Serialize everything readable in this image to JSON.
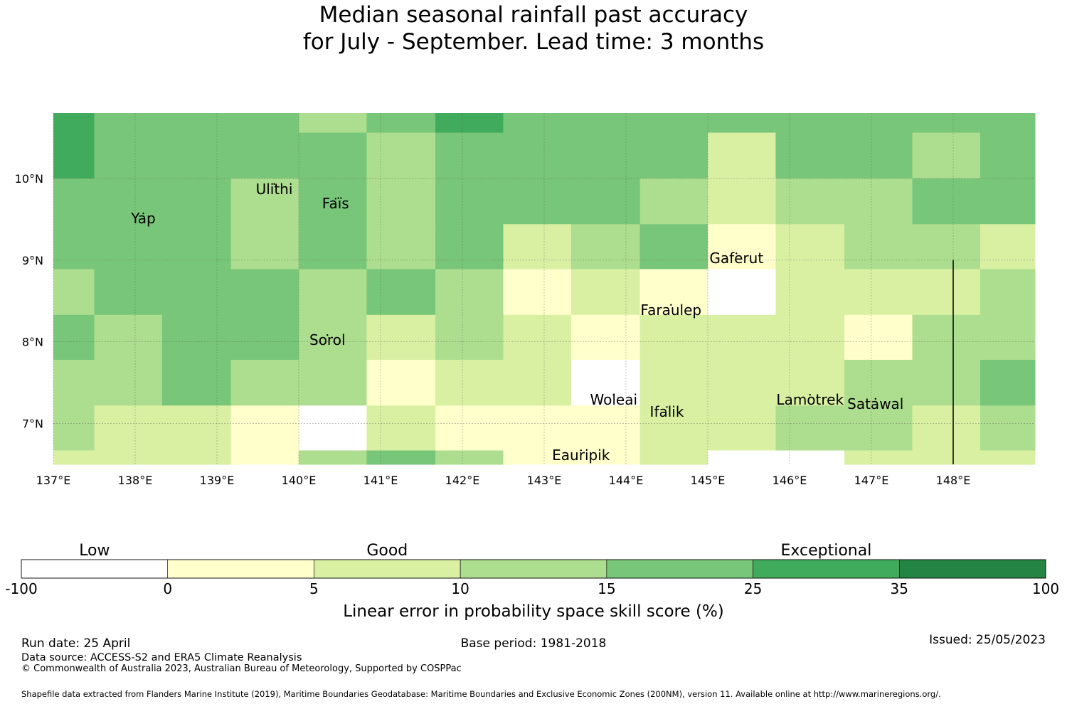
{
  "title": {
    "line1": "Median seasonal rainfall past accuracy",
    "line2": "for July - September. Lead time: 3 months"
  },
  "map": {
    "lon_range": [
      137.0,
      149.0
    ],
    "lat_range": [
      6.5,
      10.8
    ],
    "lon_ticks": [
      {
        "value": 137,
        "label": "137°E"
      },
      {
        "value": 138,
        "label": "138°E"
      },
      {
        "value": 139,
        "label": "139°E"
      },
      {
        "value": 140,
        "label": "140°E"
      },
      {
        "value": 141,
        "label": "141°E"
      },
      {
        "value": 142,
        "label": "142°E"
      },
      {
        "value": 143,
        "label": "143°E"
      },
      {
        "value": 144,
        "label": "144°E"
      },
      {
        "value": 145,
        "label": "145°E"
      },
      {
        "value": 146,
        "label": "146°E"
      },
      {
        "value": 147,
        "label": "147°E"
      },
      {
        "value": 148,
        "label": "148°E"
      }
    ],
    "lat_ticks": [
      {
        "value": 10,
        "label": "10°N"
      },
      {
        "value": 9,
        "label": "9°N"
      },
      {
        "value": 8,
        "label": "8°N"
      },
      {
        "value": 7,
        "label": "7°N"
      }
    ],
    "lon_edges": [
      137.0,
      137.5,
      138.33,
      139.17,
      140.0,
      140.83,
      141.67,
      142.5,
      143.33,
      144.17,
      145.0,
      145.83,
      146.67,
      147.5,
      148.33,
      149.0
    ],
    "lat_edges": [
      10.8,
      10.56,
      10.0,
      9.44,
      8.89,
      8.33,
      7.78,
      7.22,
      6.67,
      6.5
    ],
    "class_grid": [
      [
        5,
        4,
        4,
        4,
        3,
        4,
        5,
        4,
        4,
        4,
        4,
        4,
        4,
        4,
        4
      ],
      [
        5,
        4,
        4,
        4,
        4,
        3,
        4,
        4,
        4,
        4,
        2,
        4,
        4,
        3,
        4
      ],
      [
        4,
        4,
        4,
        3,
        4,
        3,
        4,
        4,
        4,
        3,
        2,
        3,
        3,
        4,
        4
      ],
      [
        4,
        4,
        4,
        3,
        4,
        3,
        4,
        2,
        3,
        4,
        1,
        2,
        3,
        3,
        2
      ],
      [
        3,
        4,
        4,
        4,
        3,
        4,
        3,
        1,
        2,
        1,
        0,
        2,
        2,
        2,
        3
      ],
      [
        4,
        3,
        4,
        4,
        3,
        2,
        3,
        2,
        1,
        2,
        2,
        2,
        1,
        3,
        3
      ],
      [
        3,
        3,
        4,
        3,
        3,
        1,
        2,
        2,
        0,
        2,
        2,
        2,
        3,
        3,
        4
      ],
      [
        3,
        2,
        2,
        1,
        0,
        2,
        1,
        1,
        1,
        2,
        2,
        3,
        3,
        2,
        3
      ],
      [
        2,
        2,
        2,
        1,
        3,
        4,
        3,
        1,
        1,
        2,
        0,
        0,
        2,
        2,
        2
      ]
    ],
    "vertical_line_lon": 148.0,
    "vertical_line_lat_top": 9.0,
    "islands": [
      {
        "name": "Yap",
        "lon": 138.1,
        "lat": 9.52
      },
      {
        "name": "Ulithi",
        "lon": 139.7,
        "lat": 9.88
      },
      {
        "name": "Faïs",
        "lon": 140.45,
        "lat": 9.7
      },
      {
        "name": "Sorol",
        "lon": 140.35,
        "lat": 8.03
      },
      {
        "name": "Gaferut",
        "lon": 145.35,
        "lat": 9.03
      },
      {
        "name": "Faraulep",
        "lon": 144.55,
        "lat": 8.4
      },
      {
        "name": "Woleai",
        "lon": 143.85,
        "lat": 7.3
      },
      {
        "name": "Ifalik",
        "lon": 144.5,
        "lat": 7.15
      },
      {
        "name": "Eauripik",
        "lon": 143.45,
        "lat": 6.62
      },
      {
        "name": "Lamotrek",
        "lon": 146.25,
        "lat": 7.3
      },
      {
        "name": "Satawal",
        "lon": 147.05,
        "lat": 7.25
      }
    ]
  },
  "legend": {
    "category_labels": [
      {
        "text": "Low",
        "at_class": 1
      },
      {
        "text": "Good",
        "at_class": 3
      },
      {
        "text": "Exceptional",
        "at_class": 6
      }
    ],
    "bounds": [
      "-100",
      "0",
      "5",
      "10",
      "15",
      "25",
      "35",
      "100"
    ],
    "colors": [
      "#ffffff",
      "#ffffcc",
      "#d9f0a3",
      "#addd8e",
      "#78c679",
      "#41ab5d",
      "#238443"
    ],
    "label": "Linear error in probability space skill score (%)"
  },
  "footer": {
    "run_date": "Run date: 25 April",
    "base_period": "Base period: 1981-2018",
    "issued": "Issued: 25/05/2023",
    "data_source": "Data source: ACCESS-S2 and ERA5 Climate Reanalysis",
    "copyright": "© Commonwealth of Australia 2023, Australian Bureau of Meteorology, Supported by COSPPac",
    "shapefile": "Shapefile data extracted from Flanders Marine Institute (2019), Maritime Boundaries Geodatabase: Maritime Boundaries and Exclusive Economic Zones (200NM), version 11. Available online at http://www.marineregions.org/."
  }
}
